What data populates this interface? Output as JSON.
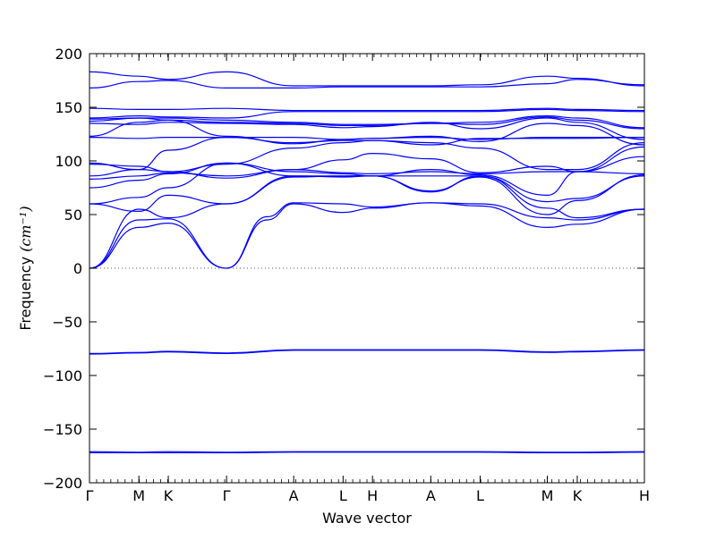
{
  "chart_data": {
    "type": "line",
    "title": "",
    "xlabel": "Wave vector",
    "ylabel": "Frequency",
    "ylabel_unit": "(cm⁻¹)",
    "ylim": [
      -200,
      200
    ],
    "yticks": [
      -200,
      -150,
      -100,
      -50,
      0,
      50,
      100,
      150,
      200
    ],
    "ytick_labels": [
      "−200",
      "−150",
      "−100",
      "−50",
      "0",
      "50",
      "100",
      "150",
      "200"
    ],
    "xlim": [
      0,
      10
    ],
    "xticks": [
      {
        "x": 0,
        "label": "Γ"
      },
      {
        "x": 0.89,
        "label": "M"
      },
      {
        "x": 1.42,
        "label": "K"
      },
      {
        "x": 2.47,
        "label": "Γ"
      },
      {
        "x": 3.68,
        "label": "A"
      },
      {
        "x": 4.57,
        "label": "L"
      },
      {
        "x": 5.1,
        "label": "H"
      },
      {
        "x": 6.15,
        "label": "A"
      },
      {
        "x": 7.04,
        "label": "L"
      },
      {
        "x": 8.25,
        "label": "M"
      },
      {
        "x": 8.79,
        "label": "K"
      },
      {
        "x": 10,
        "label": "H"
      }
    ],
    "zero_line": true,
    "line_color": "#0000ff",
    "series": [
      {
        "x": [
          0,
          0.89,
          1.42,
          2.47,
          3.68,
          4.57,
          5.1,
          6.15,
          7.04,
          8.25,
          8.79,
          10
        ],
        "y": [
          -171,
          -171.5,
          -171,
          -171.5,
          -171,
          -171,
          -171,
          -171,
          -171,
          -171.5,
          -171.5,
          -171
        ]
      },
      {
        "x": [
          0,
          0.89,
          1.42,
          2.47,
          3.68,
          4.57,
          5.1,
          6.15,
          7.04,
          8.25,
          8.79,
          10
        ],
        "y": [
          -172,
          -172,
          -172,
          -172,
          -171.5,
          -171.5,
          -171.5,
          -171.5,
          -171.5,
          -172,
          -172,
          -171.5
        ]
      },
      {
        "x": [
          0,
          0.89,
          1.42,
          2.47,
          3.68,
          4.57,
          5.1,
          6.15,
          7.04,
          8.25,
          8.79,
          10
        ],
        "y": [
          -80,
          -79,
          -78,
          -79.5,
          -76.5,
          -76.5,
          -76.5,
          -76.5,
          -76.5,
          -78.5,
          -78,
          -76.5
        ]
      },
      {
        "x": [
          0,
          0.89,
          1.42,
          2.47,
          3.68,
          4.57,
          5.1,
          6.15,
          7.04,
          8.25,
          8.79,
          10
        ],
        "y": [
          -79.5,
          -78.5,
          -77.5,
          -79,
          -76,
          -76,
          -76,
          -76,
          -76,
          -78,
          -77.5,
          -76
        ]
      },
      {
        "x": [
          0,
          0.89,
          1.42,
          2.47,
          3.2,
          3.68,
          4.57,
          5.1,
          6.15,
          7.04,
          8.25,
          8.79,
          10
        ],
        "y": [
          0,
          38,
          42,
          0,
          45,
          60,
          52,
          56,
          61,
          58,
          38,
          41,
          55
        ]
      },
      {
        "x": [
          0,
          0.89,
          1.42,
          2.47,
          3.2,
          3.68,
          4.57,
          5.1,
          6.15,
          7.04,
          8.25,
          8.79,
          10
        ],
        "y": [
          0,
          45,
          46,
          0,
          48,
          61,
          60,
          57,
          61,
          60,
          47,
          45,
          55
        ]
      },
      {
        "x": [
          0,
          0.89,
          1.42,
          2.47,
          3.68,
          4.57,
          5.1,
          6.15,
          7.04,
          8.25,
          8.79,
          10
        ],
        "y": [
          0,
          55,
          47,
          60,
          86,
          86,
          86,
          86,
          86,
          56,
          47,
          55
        ]
      },
      {
        "x": [
          0,
          0.89,
          1.42,
          2.47,
          3.68,
          4.57,
          5.1,
          6.15,
          7.04,
          8.25,
          8.79,
          10
        ],
        "y": [
          60,
          53,
          68,
          60,
          85,
          86,
          86,
          72,
          85,
          50,
          63,
          87
        ]
      },
      {
        "x": [
          0,
          0.89,
          1.42,
          2.47,
          3.68,
          4.57,
          5.1,
          6.15,
          7.04,
          8.25,
          8.79,
          10
        ],
        "y": [
          60,
          66,
          75,
          98,
          86,
          85,
          86,
          71,
          86,
          62,
          65,
          86
        ]
      },
      {
        "x": [
          0,
          0.89,
          1.42,
          2.47,
          3.68,
          4.57,
          5.1,
          6.15,
          7.04,
          8.25,
          8.79,
          10
        ],
        "y": [
          75,
          82,
          88,
          98,
          90,
          88,
          86,
          92,
          87,
          68,
          90,
          88
        ]
      },
      {
        "x": [
          0,
          0.89,
          1.42,
          2.47,
          3.68,
          4.57,
          5.1,
          6.15,
          7.04,
          8.25,
          8.79,
          10
        ],
        "y": [
          83,
          86,
          89,
          86,
          92,
          89,
          88,
          90,
          88,
          90,
          90,
          104
        ]
      },
      {
        "x": [
          0,
          0.89,
          1.42,
          2.47,
          3.68,
          4.57,
          5.1,
          6.15,
          7.04,
          8.25,
          8.79,
          10
        ],
        "y": [
          86,
          92,
          90,
          84,
          92,
          101,
          107,
          102,
          89,
          95,
          90,
          113
        ]
      },
      {
        "x": [
          0,
          0.89,
          1.42,
          2.47,
          3.68,
          4.57,
          5.1,
          6.15,
          7.04,
          8.25,
          8.79,
          10
        ],
        "y": [
          97,
          95,
          90,
          97,
          112,
          117,
          119,
          117,
          112,
          92,
          92,
          117
        ]
      },
      {
        "x": [
          0,
          0.89,
          1.42,
          2.47,
          3.68,
          4.57,
          5.1,
          6.15,
          7.04,
          8.25,
          8.79,
          10
        ],
        "y": [
          98,
          92,
          110,
          122,
          117,
          119,
          119,
          115,
          121,
          121,
          121,
          122
        ]
      },
      {
        "x": [
          0,
          0.89,
          1.42,
          2.47,
          3.68,
          4.57,
          5.1,
          6.15,
          7.04,
          8.25,
          8.79,
          10
        ],
        "y": [
          122,
          121,
          122,
          122,
          122,
          120,
          121,
          122,
          120,
          122,
          122,
          122
        ]
      },
      {
        "x": [
          0,
          0.89,
          1.42,
          2.47,
          3.68,
          4.57,
          5.1,
          6.15,
          7.04,
          8.25,
          8.79,
          10
        ],
        "y": [
          123,
          136,
          138,
          123,
          116,
          120,
          121,
          123,
          118,
          135,
          133,
          115
        ]
      },
      {
        "x": [
          0,
          0.89,
          1.42,
          2.47,
          3.68,
          4.57,
          5.1,
          6.15,
          7.04,
          8.25,
          8.79,
          10
        ],
        "y": [
          135,
          134,
          136,
          135,
          134,
          131,
          132,
          136,
          130,
          140,
          136,
          120
        ]
      },
      {
        "x": [
          0,
          0.89,
          1.42,
          2.47,
          3.68,
          4.57,
          5.1,
          6.15,
          7.04,
          8.25,
          8.79,
          10
        ],
        "y": [
          137,
          140,
          138,
          136,
          135,
          133,
          133,
          135,
          134,
          141,
          138,
          130
        ]
      },
      {
        "x": [
          0,
          0.89,
          1.42,
          2.47,
          3.68,
          4.57,
          5.1,
          6.15,
          7.04,
          8.25,
          8.79,
          10
        ],
        "y": [
          139,
          140,
          140,
          138,
          136,
          134,
          134,
          135,
          136,
          142,
          140,
          131
        ]
      },
      {
        "x": [
          0,
          0.89,
          1.42,
          2.47,
          3.68,
          4.57,
          5.1,
          6.15,
          7.04,
          8.25,
          8.79,
          10
        ],
        "y": [
          140,
          142,
          141,
          140,
          146,
          146,
          146,
          146,
          146,
          148,
          147,
          146
        ]
      },
      {
        "x": [
          0,
          0.89,
          1.42,
          2.47,
          3.68,
          4.57,
          5.1,
          6.15,
          7.04,
          8.25,
          8.79,
          10
        ],
        "y": [
          149,
          148,
          148,
          149,
          147,
          147,
          147,
          147,
          147,
          149,
          148,
          147
        ]
      },
      {
        "x": [
          0,
          0.89,
          1.42,
          2.47,
          3.68,
          4.57,
          5.1,
          6.15,
          7.04,
          8.25,
          8.79,
          10
        ],
        "y": [
          168,
          174,
          175,
          168,
          168,
          169,
          169,
          169,
          169,
          172,
          176,
          171
        ]
      },
      {
        "x": [
          0,
          0.89,
          1.42,
          2.47,
          3.68,
          4.57,
          5.1,
          6.15,
          7.04,
          8.25,
          8.79,
          10
        ],
        "y": [
          183,
          179,
          176,
          183,
          170,
          170,
          170,
          170,
          171,
          179,
          177,
          170
        ]
      }
    ]
  }
}
